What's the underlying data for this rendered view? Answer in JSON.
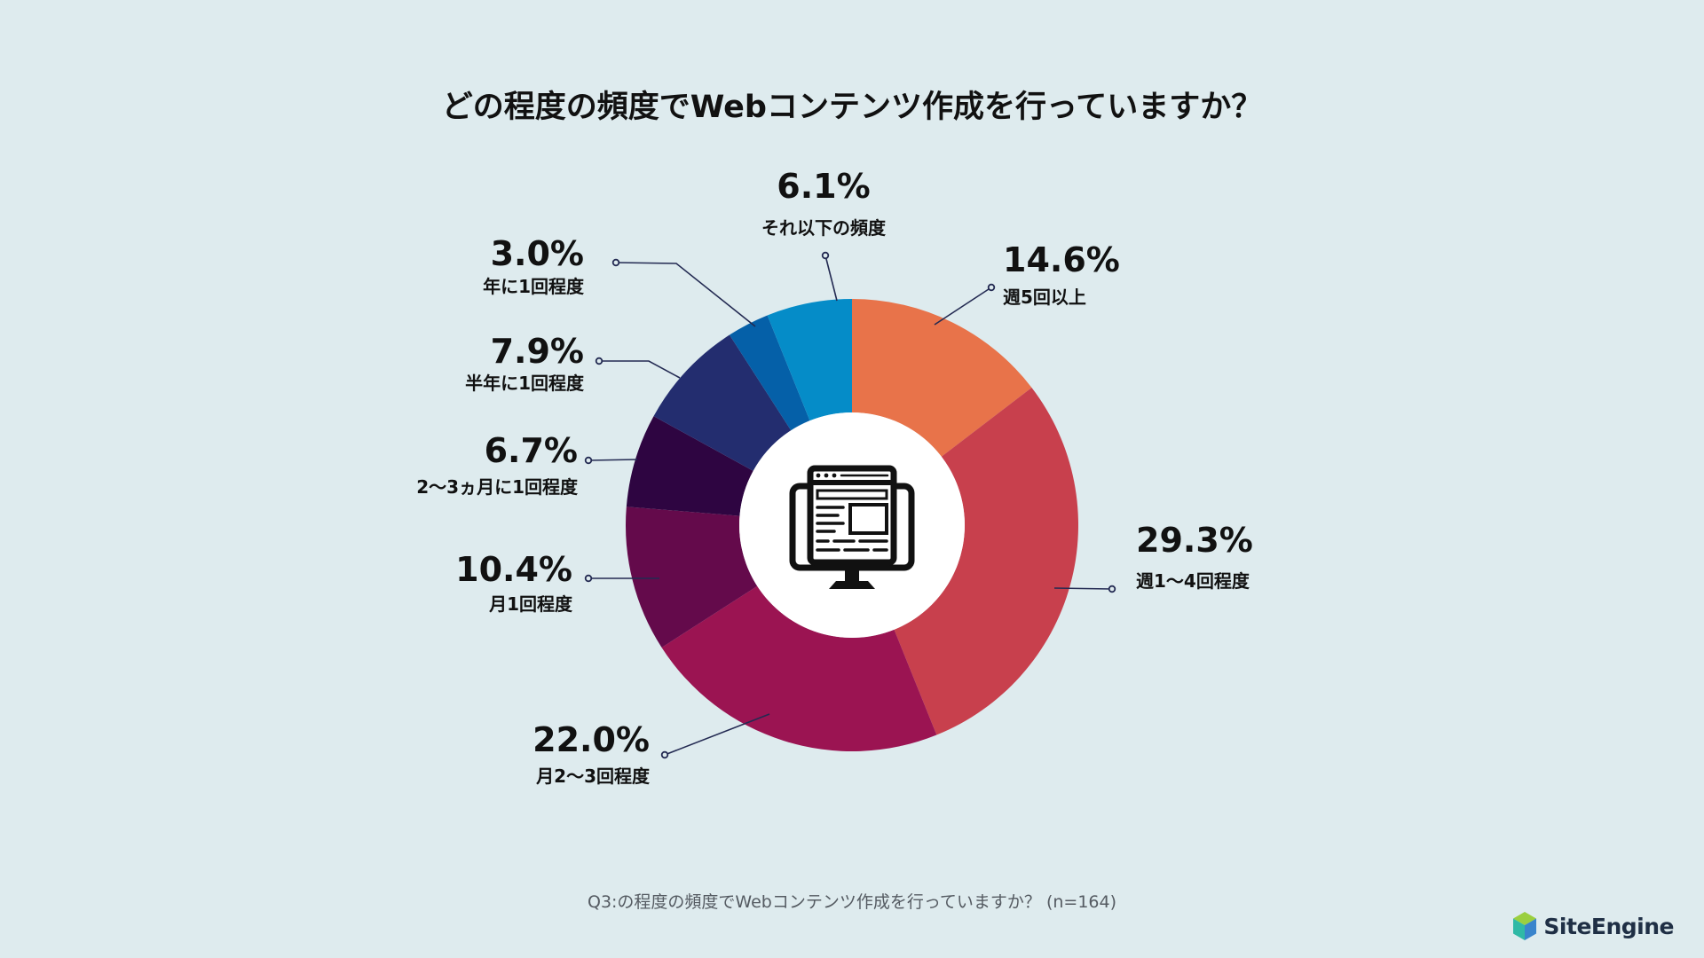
{
  "chart_data": {
    "type": "pie",
    "style": "donut",
    "title": "どの程度の頻度でWebコンテンツ作成を行っていますか？",
    "categories": [
      "週5回以上",
      "週1〜4回程度",
      "月2〜3回程度",
      "月1回程度",
      "2〜3ヵ月に1回程度",
      "半年に1回程度",
      "年に1回程度",
      "それ以下の頻度"
    ],
    "values": [
      14.6,
      29.3,
      22.0,
      10.4,
      6.7,
      7.9,
      3.0,
      6.1
    ],
    "value_labels": [
      "14.6%",
      "29.3%",
      "22.0%",
      "10.4%",
      "6.7%",
      "7.9%",
      "3.0%",
      "6.1%"
    ],
    "colors": [
      "#e8734a",
      "#c8404d",
      "#9b1452",
      "#640a4b",
      "#2e0541",
      "#232d6f",
      "#0560a8",
      "#058cc8"
    ],
    "center_icon": "web-page-monitor-icon",
    "legend": "none"
  },
  "footnote": "Q3:の程度の頻度でWebコンテンツ作成を行っていますか？ (n=164)",
  "logo": {
    "text": "SiteEngine",
    "icon": "site-engine-logo-icon",
    "colors": [
      "#2fb9a6",
      "#2f7ec9",
      "#9bcf3f"
    ]
  }
}
